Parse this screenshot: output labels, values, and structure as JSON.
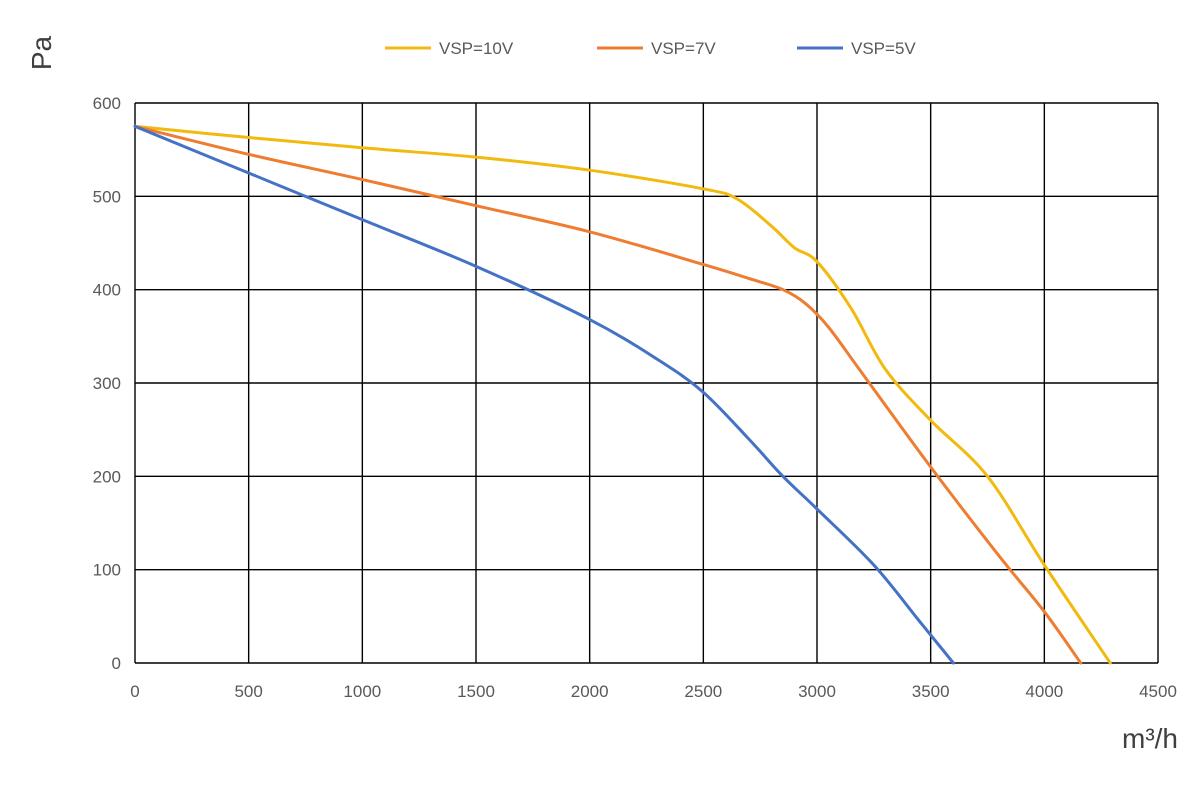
{
  "chart_data": {
    "type": "line",
    "xlabel": "m³/h",
    "ylabel": "Pa",
    "xlim": [
      0,
      4500
    ],
    "ylim": [
      0,
      600
    ],
    "xticks": [
      0,
      500,
      1000,
      1500,
      2000,
      2500,
      3000,
      3500,
      4000,
      4500
    ],
    "yticks": [
      0,
      100,
      200,
      300,
      400,
      500,
      600
    ],
    "grid": true,
    "legend": "top",
    "series": [
      {
        "name": "VSP=10V",
        "color": "#F2B90F",
        "x": [
          0,
          500,
          1000,
          1500,
          2000,
          2500,
          2650,
          2800,
          2900,
          3000,
          3150,
          3300,
          3500,
          3750,
          4000,
          4290
        ],
        "y": [
          575,
          563,
          552,
          542,
          528,
          508,
          497,
          468,
          445,
          430,
          380,
          315,
          260,
          200,
          105,
          0
        ]
      },
      {
        "name": "VSP=7V",
        "color": "#EE7D31",
        "x": [
          0,
          500,
          1000,
          1500,
          2000,
          2500,
          2700,
          2850,
          2950,
          3050,
          3200,
          3500,
          3800,
          4000,
          4160
        ],
        "y": [
          575,
          545,
          518,
          490,
          462,
          427,
          412,
          400,
          385,
          360,
          310,
          210,
          115,
          55,
          0
        ]
      },
      {
        "name": "VSP=5V",
        "color": "#4472C4",
        "x": [
          0,
          500,
          1000,
          1500,
          2000,
          2300,
          2500,
          2700,
          2850,
          3000,
          3250,
          3450,
          3600
        ],
        "y": [
          575,
          525,
          475,
          425,
          368,
          325,
          290,
          240,
          200,
          165,
          105,
          45,
          0
        ]
      }
    ]
  }
}
